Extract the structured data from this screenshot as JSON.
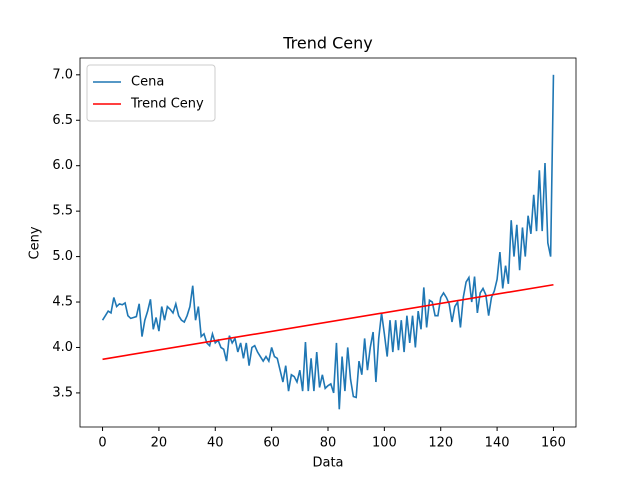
{
  "chart_data": {
    "type": "line",
    "title": "Trend Ceny",
    "xlabel": "Data",
    "ylabel": "Ceny",
    "xlim": [
      -8,
      168
    ],
    "ylim": [
      3.125,
      7.185
    ],
    "xticks": [
      0,
      20,
      40,
      60,
      80,
      100,
      120,
      140,
      160
    ],
    "yticks": [
      3.5,
      {
        "value": 4,
        "label": "4.0"
      },
      4.5,
      {
        "value": 5,
        "label": "5.0"
      },
      5.5,
      {
        "value": 6,
        "label": "6.0"
      },
      6.5,
      {
        "value": 7,
        "label": "7.0"
      }
    ],
    "legend": "upper left",
    "grid": false,
    "series": [
      {
        "name": "Cena",
        "color": "#1f77b4",
        "x": [
          0,
          1,
          2,
          3,
          4,
          5,
          6,
          7,
          8,
          9,
          10,
          11,
          12,
          13,
          14,
          15,
          16,
          17,
          18,
          19,
          20,
          21,
          22,
          23,
          24,
          25,
          26,
          27,
          28,
          29,
          30,
          31,
          32,
          33,
          34,
          35,
          36,
          37,
          38,
          39,
          40,
          41,
          42,
          43,
          44,
          45,
          46,
          47,
          48,
          49,
          50,
          51,
          52,
          53,
          54,
          55,
          56,
          57,
          58,
          59,
          60,
          61,
          62,
          63,
          64,
          65,
          66,
          67,
          68,
          69,
          70,
          71,
          72,
          73,
          74,
          75,
          76,
          77,
          78,
          79,
          80,
          81,
          82,
          83,
          84,
          85,
          86,
          87,
          88,
          89,
          90,
          91,
          92,
          93,
          94,
          95,
          96,
          97,
          98,
          99,
          100,
          101,
          102,
          103,
          104,
          105,
          106,
          107,
          108,
          109,
          110,
          111,
          112,
          113,
          114,
          115,
          116,
          117,
          118,
          119,
          120,
          121,
          122,
          123,
          124,
          125,
          126,
          127,
          128,
          129,
          130,
          131,
          132,
          133,
          134,
          135,
          136,
          137,
          138,
          139,
          140,
          141,
          142,
          143,
          144,
          145,
          146,
          147,
          148,
          149,
          150,
          151,
          152,
          153,
          154,
          155,
          156,
          157,
          158,
          159,
          160
        ],
        "values": [
          4.3,
          4.35,
          4.4,
          4.38,
          4.55,
          4.45,
          4.48,
          4.47,
          4.49,
          4.35,
          4.32,
          4.33,
          4.34,
          4.48,
          4.12,
          4.3,
          4.4,
          4.53,
          4.2,
          4.33,
          4.18,
          4.45,
          4.3,
          4.45,
          4.42,
          4.38,
          4.48,
          4.35,
          4.3,
          4.28,
          4.35,
          4.45,
          4.68,
          4.3,
          4.45,
          4.12,
          4.15,
          4.05,
          4.02,
          4.15,
          4.05,
          4.08,
          4.0,
          3.98,
          3.85,
          4.13,
          4.05,
          4.1,
          3.95,
          4.05,
          3.88,
          4.05,
          3.8,
          4.0,
          4.02,
          3.95,
          3.9,
          3.85,
          3.9,
          3.85,
          4.0,
          3.9,
          3.88,
          3.75,
          3.62,
          3.8,
          3.52,
          3.7,
          3.68,
          3.62,
          3.75,
          3.52,
          4.06,
          3.52,
          3.88,
          3.52,
          3.95,
          3.56,
          3.7,
          3.55,
          3.58,
          3.6,
          3.5,
          4.05,
          3.32,
          3.9,
          3.52,
          4.0,
          3.65,
          3.46,
          3.45,
          3.85,
          3.7,
          4.1,
          3.75,
          4.0,
          4.17,
          3.62,
          4.1,
          4.38,
          4.15,
          3.9,
          4.3,
          3.95,
          4.3,
          3.97,
          4.3,
          3.95,
          4.35,
          4.05,
          4.35,
          4.0,
          4.4,
          4.2,
          4.66,
          4.22,
          4.52,
          4.5,
          4.35,
          4.35,
          4.55,
          4.6,
          4.55,
          4.48,
          4.28,
          4.45,
          4.5,
          4.22,
          4.55,
          4.72,
          4.77,
          4.5,
          4.78,
          4.38,
          4.6,
          4.65,
          4.58,
          4.35,
          4.55,
          4.62,
          4.75,
          5.05,
          4.65,
          4.9,
          4.7,
          5.4,
          5.0,
          5.35,
          4.85,
          5.32,
          5.0,
          5.45,
          5.25,
          5.68,
          5.28,
          5.95,
          5.28,
          6.03,
          5.15,
          5.0,
          7.0
        ]
      },
      {
        "name": "Trend Ceny",
        "color": "#ff0000",
        "x": [
          0,
          160
        ],
        "values": [
          3.87,
          4.69
        ]
      }
    ]
  }
}
